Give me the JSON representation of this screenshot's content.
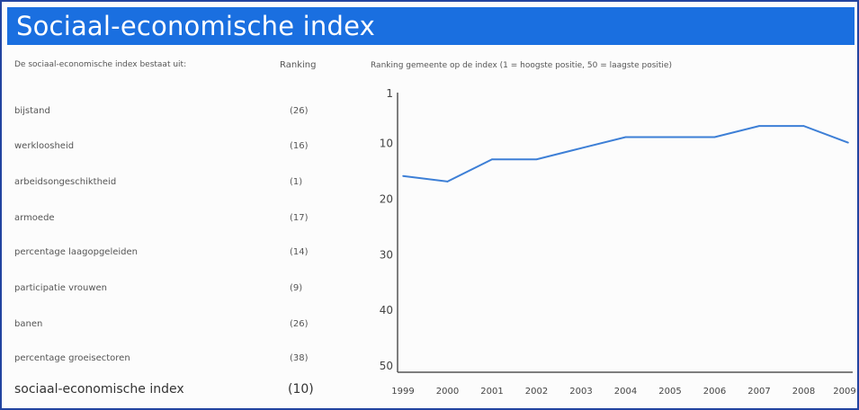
{
  "title": "Sociaal-economische index",
  "table": {
    "header_label": "De sociaal-economische index bestaat uit:",
    "header_rank": "Ranking",
    "rows": [
      {
        "label": "bijstand",
        "rank": "(26)"
      },
      {
        "label": "werkloosheid",
        "rank": "(16)"
      },
      {
        "label": "arbeidsongeschiktheid",
        "rank": "(1)"
      },
      {
        "label": "armoede",
        "rank": "(17)"
      },
      {
        "label": "percentage laagopgeleiden",
        "rank": "(14)"
      },
      {
        "label": "participatie vrouwen",
        "rank": "(9)"
      },
      {
        "label": "banen",
        "rank": "(26)"
      },
      {
        "label": "percentage groeisectoren",
        "rank": "(38)"
      }
    ],
    "total": {
      "label": "sociaal-economische index",
      "rank": "(10)"
    }
  },
  "chart_data": {
    "type": "line",
    "title": "Ranking gemeente op de index (1 = hoogste positie, 50 = laagste positie)",
    "x": [
      "1999",
      "2000",
      "2001",
      "2002",
      "2003",
      "2004",
      "2005",
      "2006",
      "2007",
      "2008",
      "2009"
    ],
    "series": [
      {
        "values": [
          16,
          17,
          13,
          13,
          11,
          9,
          9,
          9,
          7,
          7,
          10
        ]
      }
    ],
    "yticks": [
      1,
      10,
      20,
      30,
      40,
      50
    ],
    "ylim": [
      1,
      50
    ],
    "y_reversed": true,
    "grid": false,
    "line_color": "#3d7fd6"
  }
}
